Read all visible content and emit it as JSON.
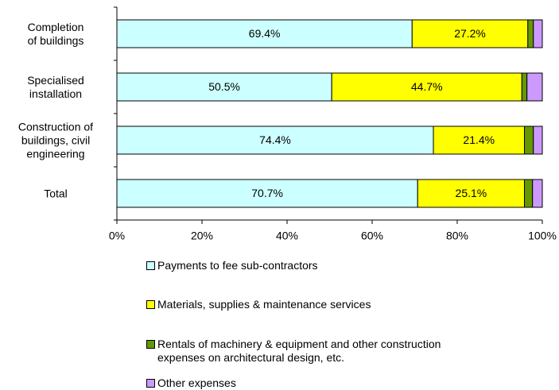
{
  "chart_data": {
    "type": "bar",
    "orientation": "horizontal",
    "stacked": true,
    "categories": [
      "Completion\nof buildings",
      "Specialised\ninstallation",
      "Construction of\nbuildings, civil\nengineering",
      "Total"
    ],
    "series": [
      {
        "name": "Payments to fee sub-contractors",
        "color": "#ccffff",
        "values": [
          69.4,
          50.5,
          74.4,
          70.7
        ],
        "value_labels": [
          "69.4%",
          "50.5%",
          "74.4%",
          "70.7%"
        ]
      },
      {
        "name": "Materials, supplies & maintenance services",
        "color": "#ffff00",
        "values": [
          27.2,
          44.7,
          21.4,
          25.1
        ],
        "value_labels": [
          "27.2%",
          "44.7%",
          "21.4%",
          "25.1%"
        ]
      },
      {
        "name": "Rentals of machinery & equipment and other construction\nexpenses on architectural design, etc.",
        "color": "#669900",
        "values": [
          1.3,
          1.2,
          2.1,
          1.9
        ]
      },
      {
        "name": "Other expenses",
        "color": "#cc99ff",
        "values": [
          2.1,
          3.6,
          2.1,
          2.3
        ]
      }
    ],
    "xlim": [
      0,
      100
    ],
    "xticks": [
      {
        "value": 0,
        "label": "0%"
      },
      {
        "value": 20,
        "label": "20%"
      },
      {
        "value": 40,
        "label": "40%"
      },
      {
        "value": 60,
        "label": "60%"
      },
      {
        "value": 80,
        "label": "80%"
      },
      {
        "value": 100,
        "label": "100%"
      }
    ]
  }
}
